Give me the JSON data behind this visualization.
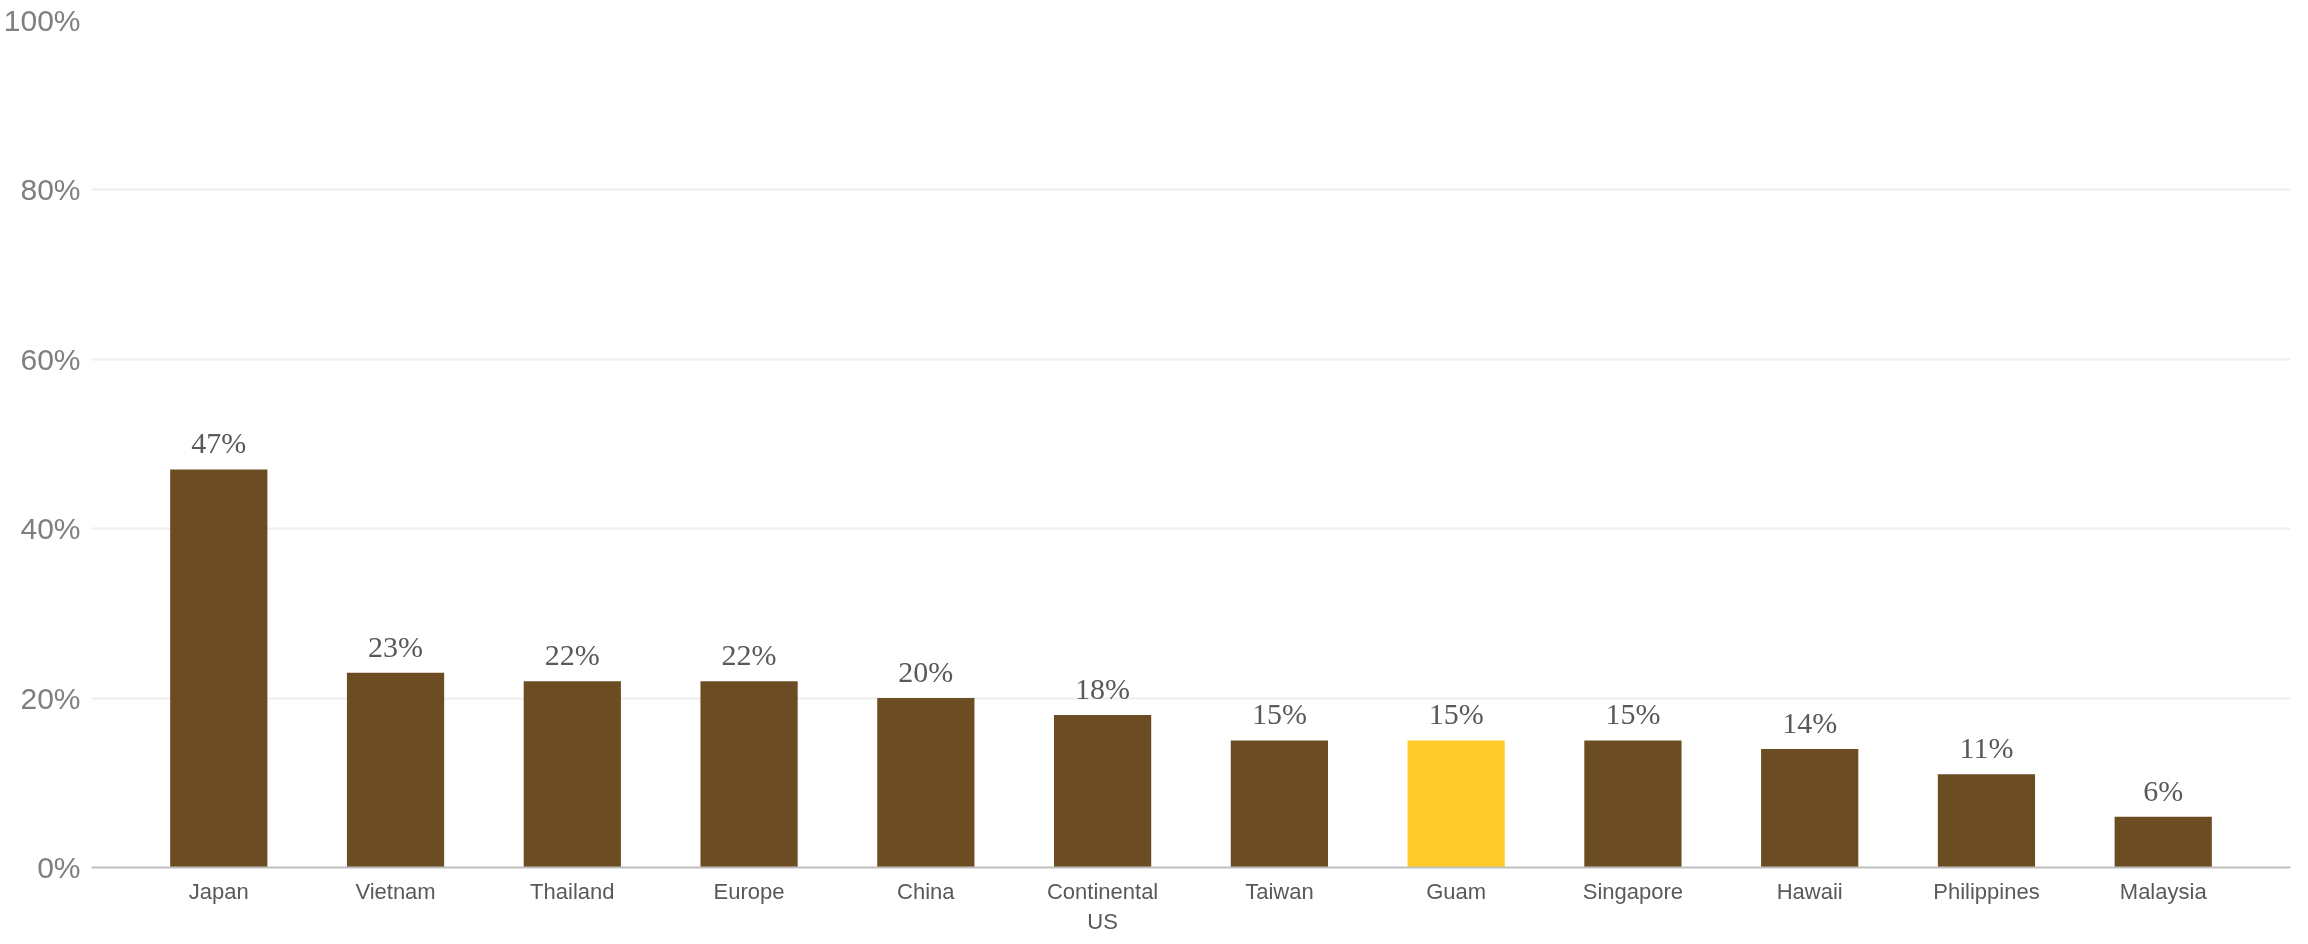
{
  "chart_data": {
    "type": "bar",
    "categories": [
      "Japan",
      "Vietnam",
      "Thailand",
      "Europe",
      "China",
      "Continental US",
      "Taiwan",
      "Guam",
      "Singapore",
      "Hawaii",
      "Philippines",
      "Malaysia"
    ],
    "values": [
      47,
      23,
      22,
      22,
      20,
      18,
      15,
      15,
      15,
      14,
      11,
      6
    ],
    "colors": [
      "#6b4c23",
      "#6b4c23",
      "#6b4c23",
      "#6b4c23",
      "#6b4c23",
      "#6b4c23",
      "#6b4c23",
      "#ffcc29",
      "#6b4c23",
      "#6b4c23",
      "#6b4c23",
      "#6b4c23"
    ],
    "value_labels": [
      "47%",
      "23%",
      "22%",
      "22%",
      "20%",
      "18%",
      "15%",
      "15%",
      "15%",
      "14%",
      "11%",
      "6%"
    ],
    "ylim": [
      0,
      100
    ],
    "yticks": [
      {
        "value": 0,
        "label": "0%"
      },
      {
        "value": 20,
        "label": "20%"
      },
      {
        "value": 40,
        "label": "40%"
      },
      {
        "value": 60,
        "label": "60%"
      },
      {
        "value": 80,
        "label": "80%"
      },
      {
        "value": 100,
        "label": "100%"
      }
    ],
    "grid": "y"
  }
}
